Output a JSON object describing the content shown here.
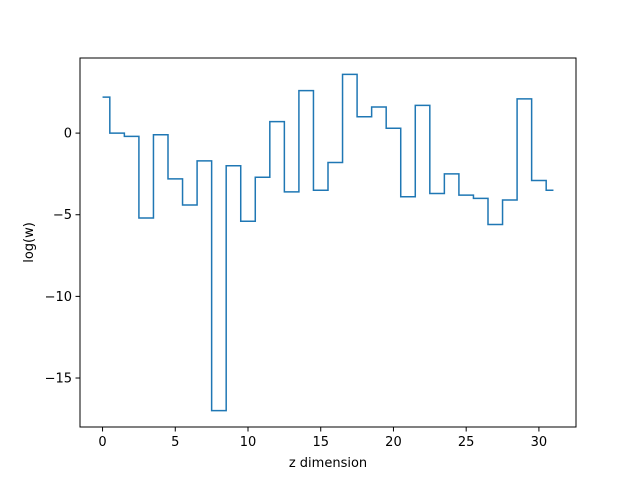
{
  "chart_data": {
    "type": "line",
    "drawstyle": "steps-mid",
    "title": "",
    "xlabel": "z dimension",
    "ylabel": "log(w)",
    "xlim": [
      -1.55,
      32.55
    ],
    "ylim": [
      -18.0,
      4.6
    ],
    "xticks": [
      0,
      5,
      10,
      15,
      20,
      25,
      30
    ],
    "yticks": [
      0,
      -5,
      -10,
      -15
    ],
    "ytick_labels": [
      "0",
      "−5",
      "−10",
      "−15"
    ],
    "grid": false,
    "legend": "none",
    "colors": {
      "line": "#1f77b4",
      "axes": "#000000",
      "background": "#ffffff"
    },
    "series": [
      {
        "x": [
          0,
          1,
          2,
          3,
          4,
          5,
          6,
          7,
          8,
          9,
          10,
          11,
          12,
          13,
          14,
          15,
          16,
          17,
          18,
          19,
          20,
          21,
          22,
          23,
          24,
          25,
          26,
          27,
          28,
          29,
          30,
          31
        ],
        "values": [
          2.2,
          0.0,
          -0.2,
          -5.2,
          -0.1,
          -2.8,
          -4.4,
          -1.7,
          -17.0,
          -2.0,
          -5.4,
          -2.7,
          0.7,
          -3.6,
          2.6,
          -3.5,
          -1.8,
          3.6,
          1.0,
          1.6,
          0.3,
          -3.9,
          1.7,
          -3.7,
          -2.5,
          -3.8,
          -4.0,
          -5.6,
          -4.1,
          2.1,
          -2.9,
          -3.5
        ]
      }
    ]
  }
}
